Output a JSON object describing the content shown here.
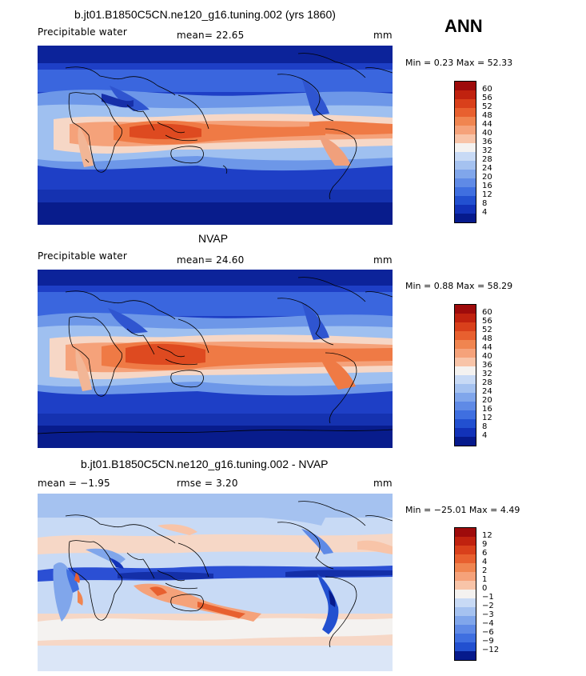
{
  "season": "ANN",
  "panels": [
    {
      "title": "b.jt01.B1850C5CN.ne120_g16.tuning.002 (yrs 1860)",
      "left_label": "Precipitable water",
      "mid_label": "mean=  22.65",
      "units": "mm",
      "minmax": "Min =    0.23 Max =   52.33",
      "colorbar": {
        "labels": [
          "60",
          "56",
          "52",
          "48",
          "44",
          "40",
          "36",
          "32",
          "28",
          "24",
          "20",
          "16",
          "12",
          "8",
          "4"
        ],
        "colors": [
          "#9e0b0b",
          "#c0220f",
          "#d9401b",
          "#e8602f",
          "#f08550",
          "#f5a27a",
          "#f8c4a8",
          "#f4f2f0",
          "#c8daf5",
          "#a5c2f0",
          "#80a6eb",
          "#5f8ae6",
          "#3f6fe0",
          "#2250d0",
          "#1232b8",
          "#061a8c"
        ]
      }
    },
    {
      "title": "NVAP",
      "left_label": "Precipitable water",
      "mid_label": "mean=  24.60",
      "units": "mm",
      "minmax": "Min =    0.88 Max =   58.29",
      "colorbar": {
        "labels": [
          "60",
          "56",
          "52",
          "48",
          "44",
          "40",
          "36",
          "32",
          "28",
          "24",
          "20",
          "16",
          "12",
          "8",
          "4"
        ],
        "colors": [
          "#9e0b0b",
          "#c0220f",
          "#d9401b",
          "#e8602f",
          "#f08550",
          "#f5a27a",
          "#f8c4a8",
          "#f4f2f0",
          "#c8daf5",
          "#a5c2f0",
          "#80a6eb",
          "#5f8ae6",
          "#3f6fe0",
          "#2250d0",
          "#1232b8",
          "#061a8c"
        ]
      }
    },
    {
      "title": "b.jt01.B1850C5CN.ne120_g16.tuning.002 - NVAP",
      "left_label": "mean =   −1.95",
      "mid_label": "rmse =    3.20",
      "units": "mm",
      "minmax": "Min = −25.01 Max =    4.49",
      "colorbar": {
        "labels": [
          "12",
          "9",
          "6",
          "4",
          "2",
          "1",
          "0",
          "−1",
          "−2",
          "−3",
          "−4",
          "−6",
          "−9",
          "−12"
        ],
        "colors": [
          "#9e0b0b",
          "#c0220f",
          "#d9401b",
          "#e8602f",
          "#f08550",
          "#f5a27a",
          "#f8c4a8",
          "#f4f2f0",
          "#c8daf5",
          "#a5c2f0",
          "#80a6eb",
          "#5f8ae6",
          "#3f6fe0",
          "#2250d0",
          "#061a8c"
        ]
      }
    }
  ]
}
